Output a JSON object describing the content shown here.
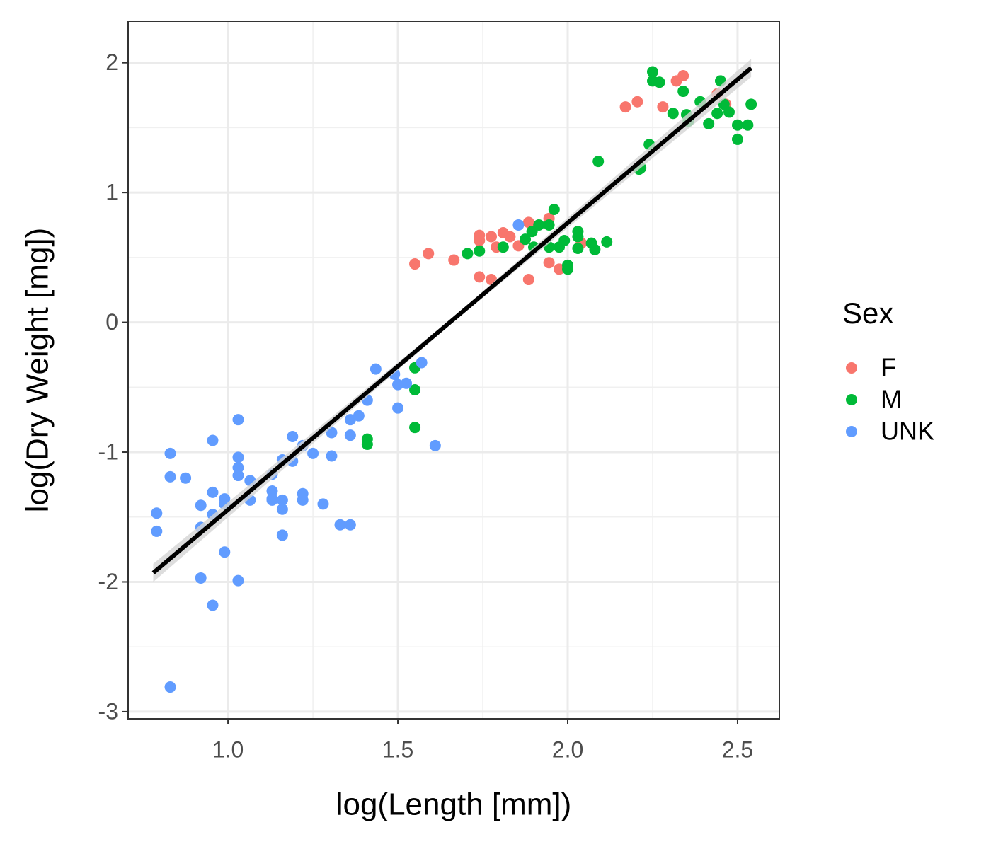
{
  "chart_data": {
    "type": "scatter",
    "x_label": "log(Length [mm])",
    "y_label": "log(Dry Weight [mg])",
    "legend_title": "Sex",
    "legend": "right",
    "grid": true,
    "xlim": [
      0.706,
      2.623
    ],
    "ylim": [
      -3.055,
      2.32
    ],
    "xticks": [
      {
        "value": 1,
        "label": "1.0"
      },
      {
        "value": 1.5,
        "label": "1.5"
      },
      {
        "value": 2,
        "label": "2.0"
      },
      {
        "value": 2.5,
        "label": "2.5"
      }
    ],
    "yticks": [
      -3,
      -2,
      -1,
      0,
      1,
      2
    ],
    "series": [
      {
        "name": "F",
        "color": "#F8766D",
        "x": [
          1.55,
          1.59,
          1.665,
          1.74,
          1.74,
          1.74,
          1.775,
          1.775,
          1.79,
          1.81,
          1.83,
          1.855,
          1.885,
          1.885,
          1.945,
          1.945,
          1.975,
          2.04,
          2.17,
          2.205,
          2.28,
          2.32,
          2.34,
          2.44,
          2.465
        ],
        "y": [
          0.45,
          0.53,
          0.48,
          0.67,
          0.63,
          0.35,
          0.66,
          0.33,
          0.58,
          0.69,
          0.66,
          0.59,
          0.77,
          0.33,
          0.8,
          0.46,
          0.41,
          0.61,
          1.66,
          1.7,
          1.66,
          1.86,
          1.9,
          1.76,
          1.68
        ]
      },
      {
        "name": "M",
        "color": "#00BA38",
        "x": [
          1.41,
          1.41,
          1.55,
          1.55,
          1.55,
          1.705,
          1.74,
          1.81,
          1.875,
          1.895,
          1.9,
          1.915,
          1.945,
          1.945,
          1.96,
          1.975,
          1.99,
          2.0,
          2.0,
          2.03,
          2.03,
          2.03,
          2.07,
          2.08,
          2.09,
          2.115,
          2.21,
          2.215,
          2.24,
          2.25,
          2.25,
          2.27,
          2.31,
          2.34,
          2.35,
          2.355,
          2.39,
          2.415,
          2.44,
          2.45,
          2.46,
          2.475,
          2.5,
          2.5,
          2.53,
          2.54
        ],
        "y": [
          -0.9,
          -0.94,
          -0.35,
          -0.52,
          -0.81,
          0.53,
          0.55,
          0.58,
          0.64,
          0.7,
          0.58,
          0.75,
          0.75,
          0.58,
          0.87,
          0.58,
          0.63,
          0.44,
          0.41,
          0.7,
          0.66,
          0.57,
          0.61,
          0.56,
          1.24,
          0.62,
          1.18,
          1.19,
          1.37,
          1.93,
          1.86,
          1.85,
          1.61,
          1.78,
          1.6,
          1.55,
          1.7,
          1.53,
          1.61,
          1.86,
          1.68,
          1.62,
          1.52,
          1.41,
          1.52,
          1.68
        ]
      },
      {
        "name": "UNK",
        "color": "#619CFF",
        "x": [
          0.79,
          0.79,
          0.83,
          0.83,
          0.83,
          0.875,
          0.92,
          0.92,
          0.92,
          0.955,
          0.955,
          0.955,
          0.955,
          0.99,
          0.99,
          0.99,
          1.03,
          1.03,
          1.03,
          1.03,
          1.03,
          1.065,
          1.065,
          1.13,
          1.13,
          1.13,
          1.13,
          1.16,
          1.16,
          1.16,
          1.16,
          1.19,
          1.19,
          1.22,
          1.22,
          1.22,
          1.25,
          1.28,
          1.305,
          1.305,
          1.33,
          1.36,
          1.36,
          1.36,
          1.385,
          1.41,
          1.435,
          1.49,
          1.5,
          1.5,
          1.525,
          1.57,
          1.61,
          1.855
        ],
        "y": [
          -1.47,
          -1.61,
          -1.01,
          -1.19,
          -2.81,
          -1.2,
          -1.41,
          -1.58,
          -1.97,
          -0.91,
          -1.31,
          -1.48,
          -2.18,
          -1.36,
          -1.4,
          -1.77,
          -0.75,
          -1.04,
          -1.12,
          -1.18,
          -1.99,
          -1.22,
          -1.37,
          -1.17,
          -1.3,
          -1.36,
          -1.37,
          -1.06,
          -1.37,
          -1.44,
          -1.64,
          -0.88,
          -1.07,
          -0.95,
          -1.32,
          -1.37,
          -1.01,
          -1.4,
          -0.85,
          -1.03,
          -1.56,
          -1.56,
          -0.75,
          -0.87,
          -0.72,
          -0.6,
          -0.36,
          -0.4,
          -0.48,
          -0.66,
          -0.47,
          -0.31,
          -0.95,
          0.75
        ]
      }
    ],
    "fit": {
      "color": "#000000",
      "ci_color": "#d4d4d4",
      "x": [
        0.78,
        1.66,
        2.54
      ],
      "y": [
        -1.93,
        0.015,
        1.96
      ],
      "ci_lower": [
        -2.0,
        -0.005,
        1.89
      ],
      "ci_upper": [
        -1.86,
        0.035,
        2.03
      ]
    }
  }
}
